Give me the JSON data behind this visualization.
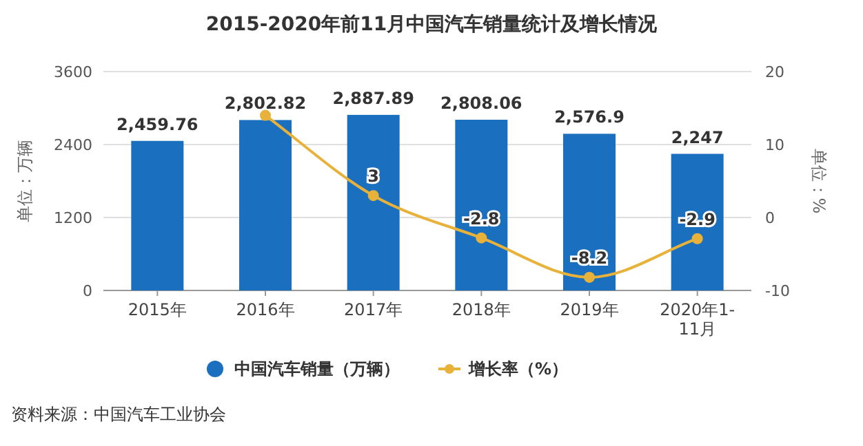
{
  "chart_data": {
    "type": "bar",
    "title": "2015-2020年前11月中国汽车销量统计及增长情况",
    "categories": [
      "2015年",
      "2016年",
      "2017年",
      "2018年",
      "2019年",
      "2020年1-11月"
    ],
    "series": [
      {
        "name": "中国汽车销量（万辆）",
        "color": "#1a6fbf",
        "values": [
          2459.76,
          2802.82,
          2887.89,
          2808.06,
          2576.9,
          2247
        ],
        "value_labels": [
          "2,459.76",
          "2,802.82",
          "2,887.89",
          "2,808.06",
          "2,576.9",
          "2,247"
        ]
      },
      {
        "name": "增长率（%）",
        "type": "line",
        "axis": "y2",
        "color": "#e8b23a",
        "values": [
          null,
          14,
          3,
          -2.8,
          -8.2,
          -2.9
        ],
        "value_labels": [
          null,
          null,
          "3",
          "-2.8",
          "-8.2",
          "-2.9"
        ]
      }
    ],
    "ylabel": "单位：万辆",
    "y2label": "单位：%",
    "ylim": [
      0,
      3600
    ],
    "yticks": [
      0,
      1200,
      2400,
      3600
    ],
    "y2lim": [
      -10,
      20
    ],
    "y2ticks": [
      -10,
      0,
      10,
      20
    ],
    "grid": "y",
    "legend": "bottom",
    "marker": "circle",
    "annotations": [
      "资料来源：中国汽车工业协会"
    ]
  }
}
